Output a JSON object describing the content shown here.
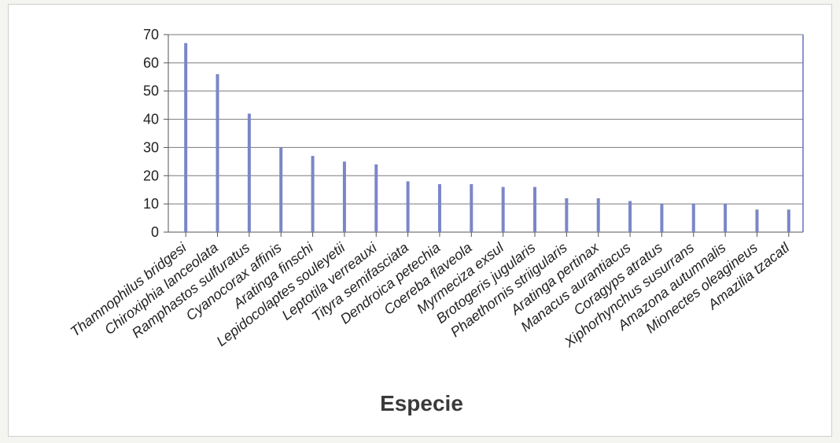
{
  "chart_data": {
    "type": "bar",
    "title": "",
    "xlabel": "Especie",
    "ylabel": "",
    "ylim": [
      0,
      70
    ],
    "yticks": [
      0,
      10,
      20,
      30,
      40,
      50,
      60,
      70
    ],
    "grid": true,
    "legend": "none",
    "bar_color": "#7b86c8",
    "categories": [
      "Thamnophilus bridgesi",
      "Chiroxiphia lanceolata",
      "Ramphastos sulfuratus",
      "Cyanocorax affinis",
      "Aratinga finschi",
      "Lepidocolaptes souleyetii",
      "Leptotila verreauxi",
      "Tityra semifasciata",
      "Dendroica petechia",
      "Coereba flaveola",
      "Myrmeciza exsul",
      "Brotogeris jugularis",
      "Phaethornis striigularis",
      "Aratinga pertinax",
      "Manacus aurantiacus",
      "Coragyps atratus",
      "Xiphorhynchus susurrans",
      "Amazona autumnalis",
      "Mionectes oleagineus",
      "Amazilia tzacatl"
    ],
    "values": [
      67,
      56,
      42,
      30,
      27,
      25,
      24,
      18,
      17,
      17,
      16,
      16,
      12,
      12,
      11,
      10,
      10,
      10,
      8,
      8
    ]
  }
}
